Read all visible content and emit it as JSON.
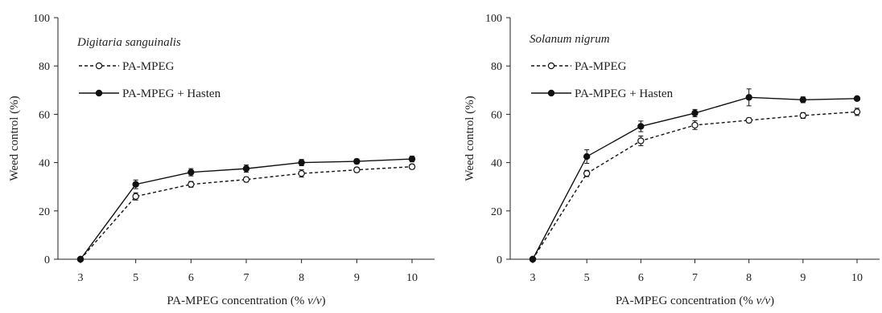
{
  "chart_data": [
    {
      "type": "line",
      "annotation": "Digitaria sanguinalis",
      "xlabel_parts": [
        "PA-MPEG concentration (% ",
        "v/v",
        ")"
      ],
      "ylabel": "Weed control (%)",
      "x": [
        3,
        5,
        6,
        7,
        8,
        9,
        10
      ],
      "xticks": [
        "3",
        "5",
        "6",
        "7",
        "8",
        "9",
        "10"
      ],
      "yticks": [
        "0",
        "20",
        "40",
        "60",
        "80",
        "100"
      ],
      "ylim": [
        0,
        100
      ],
      "grid": false,
      "legend_position": "top-left",
      "series": [
        {
          "name": "PA-MPEG",
          "marker": "open-circle",
          "line": "dashed",
          "values": [
            0,
            26,
            31,
            33,
            35.5,
            37,
            38.3
          ],
          "errors": [
            0,
            1.5,
            1.2,
            1.0,
            1.5,
            1.0,
            1.0
          ]
        },
        {
          "name": "PA-MPEG + Hasten",
          "marker": "filled-circle",
          "line": "solid",
          "values": [
            0,
            31,
            36,
            37.5,
            40,
            40.5,
            41.5
          ],
          "errors": [
            0,
            1.8,
            1.5,
            1.5,
            1.3,
            1.0,
            1.2
          ]
        }
      ]
    },
    {
      "type": "line",
      "annotation": "Solanum nigrum",
      "xlabel_parts": [
        "PA-MPEG concentration (% ",
        "v/v",
        ")"
      ],
      "ylabel": "Weed control (%)",
      "x": [
        3,
        5,
        6,
        7,
        8,
        9,
        10
      ],
      "xticks": [
        "3",
        "5",
        "6",
        "7",
        "8",
        "9",
        "10"
      ],
      "yticks": [
        "0",
        "20",
        "40",
        "60",
        "80",
        "100"
      ],
      "ylim": [
        0,
        100
      ],
      "grid": false,
      "legend_position": "top-left",
      "series": [
        {
          "name": "PA-MPEG",
          "marker": "open-circle",
          "line": "dashed",
          "values": [
            0,
            35.5,
            49,
            55.5,
            57.5,
            59.5,
            61
          ],
          "errors": [
            0,
            1.3,
            2.0,
            1.8,
            1.0,
            1.2,
            1.5
          ]
        },
        {
          "name": "PA-MPEG + Hasten",
          "marker": "filled-circle",
          "line": "solid",
          "values": [
            0,
            42.5,
            55,
            60.5,
            67,
            66,
            66.5
          ],
          "errors": [
            0,
            2.8,
            2.2,
            1.5,
            3.5,
            1.2,
            0.8
          ]
        }
      ]
    }
  ],
  "colors": {
    "line": "#111111",
    "axis": "#222222",
    "text": "#222222"
  }
}
